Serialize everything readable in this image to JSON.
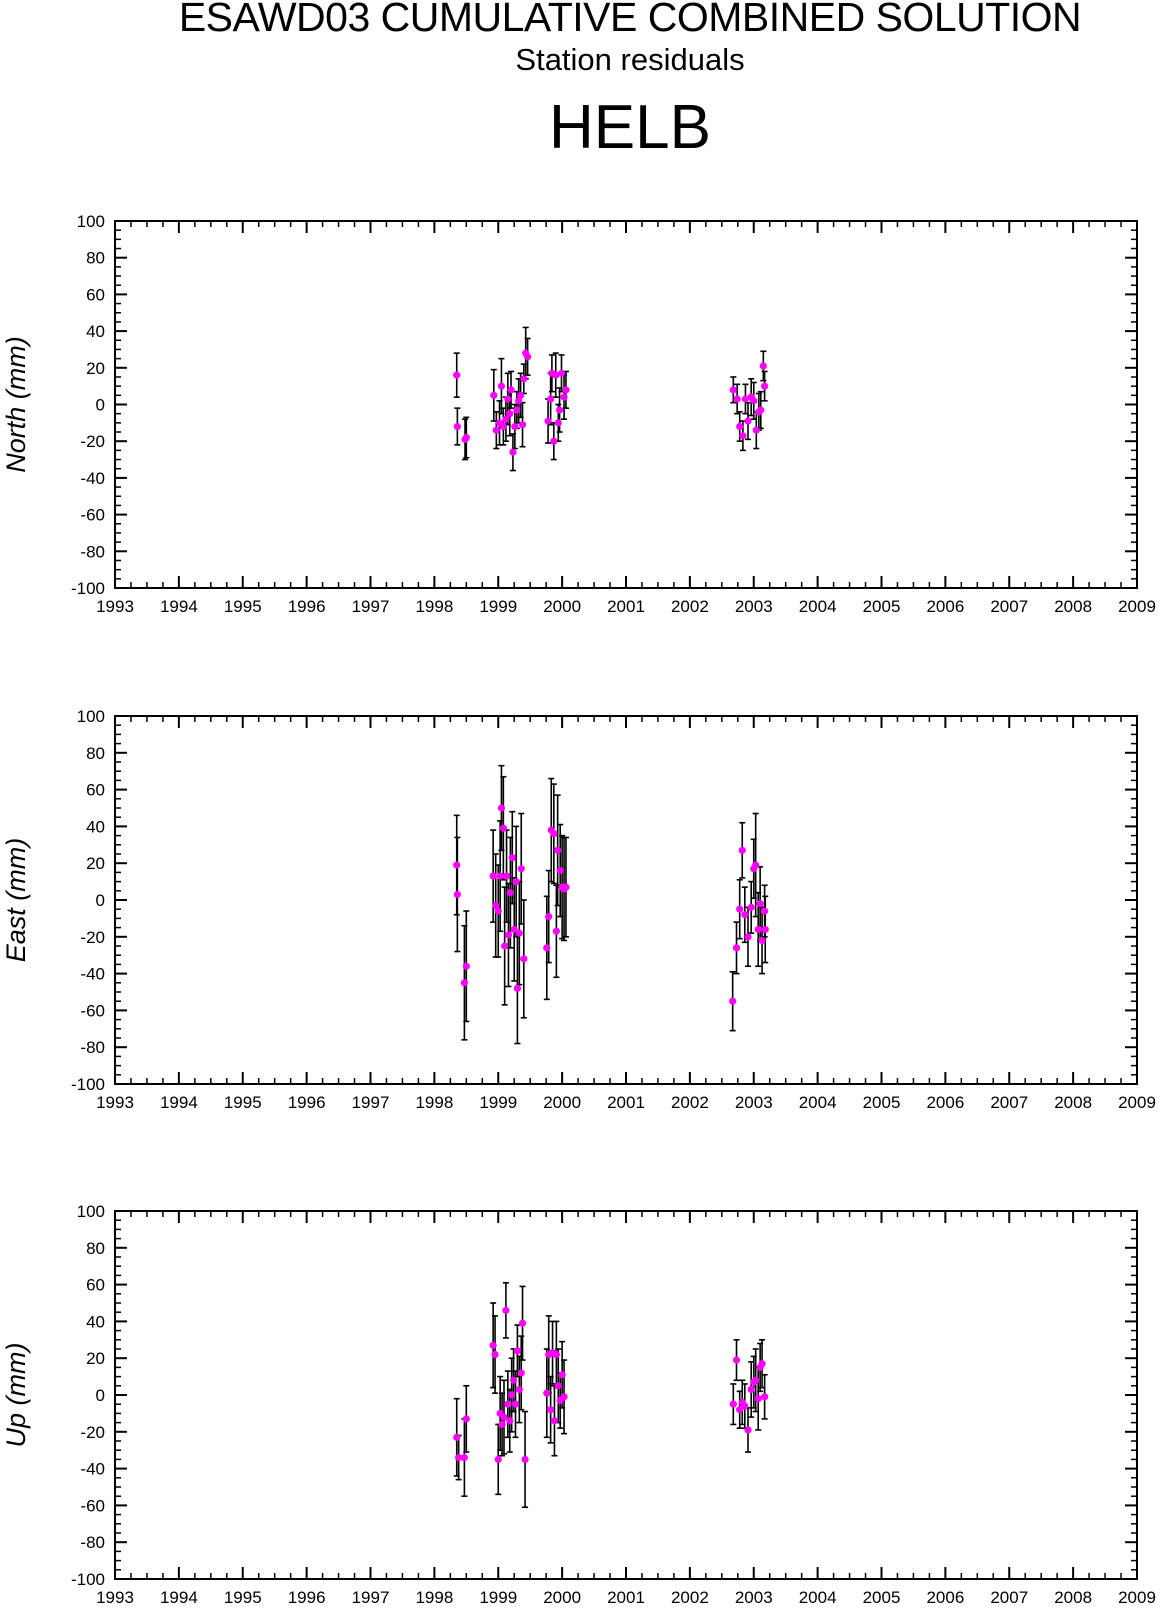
{
  "header": {
    "title": "ESAWD03 CUMULATIVE COMBINED SOLUTION",
    "subtitle": "Station residuals",
    "station": "HELB"
  },
  "colors": {
    "point": "#ff00ff",
    "errorbar": "#000000",
    "axis": "#000000"
  },
  "chart_data": [
    {
      "type": "scatter",
      "ylabel": "North (mm)",
      "xlim": [
        1993,
        2009
      ],
      "ylim": [
        -100,
        100
      ],
      "xticks": [
        "1993",
        "1994",
        "1995",
        "1996",
        "1997",
        "1998",
        "1999",
        "2000",
        "2001",
        "2002",
        "2003",
        "2004",
        "2005",
        "2006",
        "2007",
        "2008",
        "2009"
      ],
      "yticks": [
        "100",
        "80",
        "60",
        "40",
        "20",
        "0",
        "-20",
        "-40",
        "-60",
        "-80",
        "-100"
      ],
      "grid": false,
      "points": [
        {
          "x": 1998.35,
          "y": 16,
          "err": 12
        },
        {
          "x": 1998.36,
          "y": -12,
          "err": 10
        },
        {
          "x": 1998.48,
          "y": -19,
          "err": 11
        },
        {
          "x": 1998.5,
          "y": -18,
          "err": 11
        },
        {
          "x": 1998.93,
          "y": 5,
          "err": 14
        },
        {
          "x": 1998.97,
          "y": -14,
          "err": 10
        },
        {
          "x": 1999.02,
          "y": -10,
          "err": 12
        },
        {
          "x": 1999.05,
          "y": 10,
          "err": 15
        },
        {
          "x": 1999.08,
          "y": -12,
          "err": 10
        },
        {
          "x": 1999.12,
          "y": -8,
          "err": 12
        },
        {
          "x": 1999.15,
          "y": 3,
          "err": 14
        },
        {
          "x": 1999.18,
          "y": -5,
          "err": 12
        },
        {
          "x": 1999.2,
          "y": 8,
          "err": 10
        },
        {
          "x": 1999.23,
          "y": -26,
          "err": 10
        },
        {
          "x": 1999.26,
          "y": -12,
          "err": 12
        },
        {
          "x": 1999.29,
          "y": -3,
          "err": 10
        },
        {
          "x": 1999.32,
          "y": 2,
          "err": 12
        },
        {
          "x": 1999.35,
          "y": 5,
          "err": 12
        },
        {
          "x": 1999.38,
          "y": -11,
          "err": 12
        },
        {
          "x": 1999.4,
          "y": 14,
          "err": 8
        },
        {
          "x": 1999.43,
          "y": 28,
          "err": 14
        },
        {
          "x": 1999.46,
          "y": 26,
          "err": 10
        },
        {
          "x": 1999.78,
          "y": -9,
          "err": 12
        },
        {
          "x": 1999.82,
          "y": 3,
          "err": 14
        },
        {
          "x": 1999.84,
          "y": 17,
          "err": 10
        },
        {
          "x": 1999.87,
          "y": -20,
          "err": 10
        },
        {
          "x": 1999.9,
          "y": 16,
          "err": 12
        },
        {
          "x": 1999.94,
          "y": -10,
          "err": 10
        },
        {
          "x": 1999.96,
          "y": -3,
          "err": 12
        },
        {
          "x": 1999.99,
          "y": 17,
          "err": 10
        },
        {
          "x": 2000.03,
          "y": 4,
          "err": 12
        },
        {
          "x": 2000.06,
          "y": 8,
          "err": 10
        },
        {
          "x": 2002.68,
          "y": 8,
          "err": 7
        },
        {
          "x": 2002.74,
          "y": 3,
          "err": 8
        },
        {
          "x": 2002.78,
          "y": -12,
          "err": 8
        },
        {
          "x": 2002.83,
          "y": -17,
          "err": 8
        },
        {
          "x": 2002.87,
          "y": 3,
          "err": 8
        },
        {
          "x": 2002.91,
          "y": -9,
          "err": 10
        },
        {
          "x": 2002.96,
          "y": 4,
          "err": 10
        },
        {
          "x": 2003.0,
          "y": 2,
          "err": 10
        },
        {
          "x": 2003.04,
          "y": -14,
          "err": 10
        },
        {
          "x": 2003.08,
          "y": -4,
          "err": 10
        },
        {
          "x": 2003.11,
          "y": -3,
          "err": 10
        },
        {
          "x": 2003.15,
          "y": 21,
          "err": 8
        },
        {
          "x": 2003.17,
          "y": 10,
          "err": 8
        }
      ]
    },
    {
      "type": "scatter",
      "ylabel": "East (mm)",
      "xlim": [
        1993,
        2009
      ],
      "ylim": [
        -100,
        100
      ],
      "xticks": [
        "1993",
        "1994",
        "1995",
        "1996",
        "1997",
        "1998",
        "1999",
        "2000",
        "2001",
        "2002",
        "2003",
        "2004",
        "2005",
        "2006",
        "2007",
        "2008",
        "2009"
      ],
      "yticks": [
        "100",
        "80",
        "60",
        "40",
        "20",
        "0",
        "-20",
        "-40",
        "-60",
        "-80",
        "-100"
      ],
      "grid": false,
      "points": [
        {
          "x": 1998.35,
          "y": 19,
          "err": 27
        },
        {
          "x": 1998.36,
          "y": 3,
          "err": 31
        },
        {
          "x": 1998.47,
          "y": -45,
          "err": 31
        },
        {
          "x": 1998.5,
          "y": -36,
          "err": 30
        },
        {
          "x": 1998.92,
          "y": 13,
          "err": 25
        },
        {
          "x": 1998.96,
          "y": -3,
          "err": 28
        },
        {
          "x": 1999.0,
          "y": -6,
          "err": 25
        },
        {
          "x": 1999.03,
          "y": 13,
          "err": 30
        },
        {
          "x": 1999.05,
          "y": 50,
          "err": 23
        },
        {
          "x": 1999.08,
          "y": 39,
          "err": 28
        },
        {
          "x": 1999.1,
          "y": -25,
          "err": 32
        },
        {
          "x": 1999.13,
          "y": 13,
          "err": 25
        },
        {
          "x": 1999.16,
          "y": -19,
          "err": 28
        },
        {
          "x": 1999.19,
          "y": 4,
          "err": 30
        },
        {
          "x": 1999.22,
          "y": 23,
          "err": 25
        },
        {
          "x": 1999.25,
          "y": -16,
          "err": 28
        },
        {
          "x": 1999.28,
          "y": 10,
          "err": 30
        },
        {
          "x": 1999.3,
          "y": -48,
          "err": 30
        },
        {
          "x": 1999.33,
          "y": -18,
          "err": 28
        },
        {
          "x": 1999.36,
          "y": 17,
          "err": 30
        },
        {
          "x": 1999.4,
          "y": -32,
          "err": 32
        },
        {
          "x": 1999.76,
          "y": -26,
          "err": 28
        },
        {
          "x": 1999.79,
          "y": -9,
          "err": 25
        },
        {
          "x": 1999.83,
          "y": 38,
          "err": 28
        },
        {
          "x": 1999.87,
          "y": 36,
          "err": 27
        },
        {
          "x": 1999.91,
          "y": -17,
          "err": 25
        },
        {
          "x": 1999.93,
          "y": 27,
          "err": 30
        },
        {
          "x": 1999.97,
          "y": 16,
          "err": 25
        },
        {
          "x": 2000.0,
          "y": 7,
          "err": 28
        },
        {
          "x": 2000.03,
          "y": 6,
          "err": 28
        },
        {
          "x": 2000.06,
          "y": 7,
          "err": 27
        },
        {
          "x": 2002.67,
          "y": -55,
          "err": 16
        },
        {
          "x": 2002.73,
          "y": -26,
          "err": 14
        },
        {
          "x": 2002.78,
          "y": -5,
          "err": 16
        },
        {
          "x": 2002.82,
          "y": 27,
          "err": 15
        },
        {
          "x": 2002.86,
          "y": -8,
          "err": 15
        },
        {
          "x": 2002.91,
          "y": -20,
          "err": 16
        },
        {
          "x": 2002.96,
          "y": -4,
          "err": 14
        },
        {
          "x": 2003.0,
          "y": 17,
          "err": 16
        },
        {
          "x": 2003.03,
          "y": 19,
          "err": 28
        },
        {
          "x": 2003.07,
          "y": -16,
          "err": 20
        },
        {
          "x": 2003.1,
          "y": -2,
          "err": 20
        },
        {
          "x": 2003.13,
          "y": -22,
          "err": 18
        },
        {
          "x": 2003.17,
          "y": -6,
          "err": 14
        },
        {
          "x": 2003.18,
          "y": -16,
          "err": 18
        }
      ]
    },
    {
      "type": "scatter",
      "ylabel": "Up (mm)",
      "xlim": [
        1993,
        2009
      ],
      "ylim": [
        -100,
        100
      ],
      "xticks": [
        "1993",
        "1994",
        "1995",
        "1996",
        "1997",
        "1998",
        "1999",
        "2000",
        "2001",
        "2002",
        "2003",
        "2004",
        "2005",
        "2006",
        "2007",
        "2008",
        "2009"
      ],
      "yticks": [
        "100",
        "80",
        "60",
        "40",
        "20",
        "0",
        "-20",
        "-40",
        "-60",
        "-80",
        "-100"
      ],
      "grid": false,
      "points": [
        {
          "x": 1998.35,
          "y": -23,
          "err": 21
        },
        {
          "x": 1998.38,
          "y": -34,
          "err": 12
        },
        {
          "x": 1998.47,
          "y": -34,
          "err": 21
        },
        {
          "x": 1998.5,
          "y": -13,
          "err": 18
        },
        {
          "x": 1998.92,
          "y": 27,
          "err": 23
        },
        {
          "x": 1998.95,
          "y": 22,
          "err": 21
        },
        {
          "x": 1999.0,
          "y": -35,
          "err": 19
        },
        {
          "x": 1999.03,
          "y": -10,
          "err": 20
        },
        {
          "x": 1999.06,
          "y": -16,
          "err": 17
        },
        {
          "x": 1999.09,
          "y": -12,
          "err": 20
        },
        {
          "x": 1999.12,
          "y": 46,
          "err": 15
        },
        {
          "x": 1999.15,
          "y": -5,
          "err": 18
        },
        {
          "x": 1999.18,
          "y": -14,
          "err": 17
        },
        {
          "x": 1999.21,
          "y": 0,
          "err": 20
        },
        {
          "x": 1999.24,
          "y": 8,
          "err": 17
        },
        {
          "x": 1999.27,
          "y": -5,
          "err": 18
        },
        {
          "x": 1999.3,
          "y": 24,
          "err": 14
        },
        {
          "x": 1999.33,
          "y": 3,
          "err": 18
        },
        {
          "x": 1999.36,
          "y": 12,
          "err": 20
        },
        {
          "x": 1999.38,
          "y": 39,
          "err": 20
        },
        {
          "x": 1999.42,
          "y": -35,
          "err": 26
        },
        {
          "x": 1999.76,
          "y": 1,
          "err": 24
        },
        {
          "x": 1999.79,
          "y": 22,
          "err": 21
        },
        {
          "x": 1999.82,
          "y": -8,
          "err": 18
        },
        {
          "x": 1999.85,
          "y": 23,
          "err": 17
        },
        {
          "x": 1999.88,
          "y": -14,
          "err": 19
        },
        {
          "x": 1999.91,
          "y": 22,
          "err": 18
        },
        {
          "x": 1999.94,
          "y": 5,
          "err": 20
        },
        {
          "x": 1999.97,
          "y": -3,
          "err": 15
        },
        {
          "x": 2000.0,
          "y": 11,
          "err": 18
        },
        {
          "x": 2000.03,
          "y": -1,
          "err": 20
        },
        {
          "x": 2002.68,
          "y": -5,
          "err": 11
        },
        {
          "x": 2002.73,
          "y": 19,
          "err": 11
        },
        {
          "x": 2002.78,
          "y": -8,
          "err": 10
        },
        {
          "x": 2002.82,
          "y": -4,
          "err": 12
        },
        {
          "x": 2002.86,
          "y": -6,
          "err": 12
        },
        {
          "x": 2002.91,
          "y": -19,
          "err": 12
        },
        {
          "x": 2002.96,
          "y": 3,
          "err": 15
        },
        {
          "x": 2003.0,
          "y": 7,
          "err": 14
        },
        {
          "x": 2003.03,
          "y": 8,
          "err": 17
        },
        {
          "x": 2003.07,
          "y": -2,
          "err": 17
        },
        {
          "x": 2003.1,
          "y": 15,
          "err": 13
        },
        {
          "x": 2003.13,
          "y": 17,
          "err": 13
        },
        {
          "x": 2003.17,
          "y": -1,
          "err": 12
        }
      ]
    }
  ]
}
